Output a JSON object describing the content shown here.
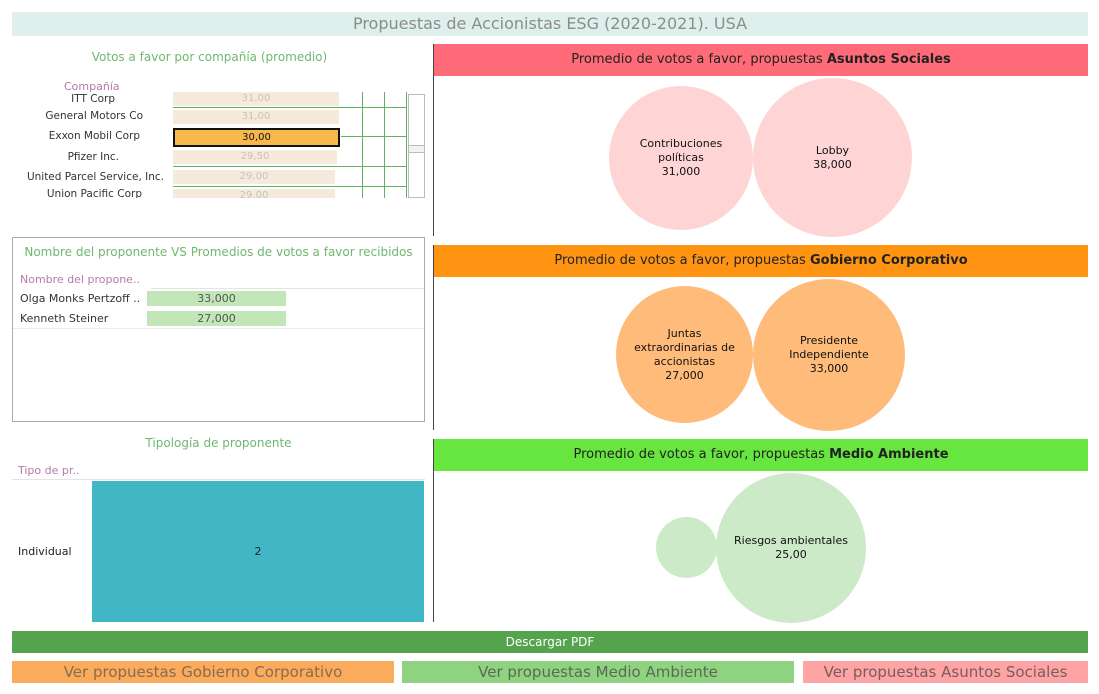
{
  "header": {
    "title": "Propuestas de Accionistas ESG (2020-2021). USA"
  },
  "company_panel": {
    "title": "Votos a favor por compañía (promedio)",
    "field_label": "Compañía",
    "rows": [
      {
        "name": "ITT Corp",
        "value": "31,00"
      },
      {
        "name": "General Motors Co",
        "value": "31,00"
      },
      {
        "name": "Exxon Mobil Corp",
        "value": "30,00"
      },
      {
        "name": "Pfizer Inc.",
        "value": "29,50"
      },
      {
        "name": "United Parcel Service, Inc.",
        "value": "29,00"
      },
      {
        "name": "Union Pacific Corp",
        "value": "29,00"
      }
    ]
  },
  "proponent_panel": {
    "title": "Nombre del proponente VS Promedios de votos a favor recibidos",
    "field_label": "Nombre del propone..",
    "rows": [
      {
        "name": "Olga Monks Pertzoff ..",
        "value": "33,000"
      },
      {
        "name": "Kenneth Steiner",
        "value": "27,000"
      }
    ]
  },
  "typology_panel": {
    "title": "Tipología de proponente",
    "field_label": "Tipo de pr..",
    "rows": [
      {
        "name": "Individual",
        "value": "2"
      }
    ]
  },
  "sections": {
    "social": {
      "header_prefix": "Promedio de votos a favor, propuestas ",
      "header_bold": "Asuntos Sociales",
      "color": "#ff6b78",
      "bubble_color": "#ffd4d4",
      "bubbles": [
        {
          "label": "Contribuciones políticas",
          "value": "31,000"
        },
        {
          "label": "Lobby",
          "value": "38,000"
        }
      ]
    },
    "governance": {
      "header_prefix": "Promedio de votos a favor, propuestas ",
      "header_bold": "Gobierno Corporativo",
      "color": "#ff9412",
      "bubble_color": "#ffbb7a",
      "bubbles": [
        {
          "label": "Juntas extraordinarias de accionistas",
          "value": "27,000"
        },
        {
          "label": "Presidente Independiente",
          "value": "33,000"
        }
      ]
    },
    "environment": {
      "header_prefix": "Promedio de votos a favor, propuestas ",
      "header_bold": "Medio Ambiente",
      "color": "#66e63e",
      "bubble_color": "#cdeac8",
      "bubbles": [
        {
          "label": "Riesgos ambientales",
          "value": "25,00"
        }
      ]
    }
  },
  "buttons": {
    "download": "Descargar PDF",
    "governance": "Ver propuestas Gobierno Corporativo",
    "environment": "Ver propuestas Medio Ambiente",
    "social": "Ver propuestas Asuntos Sociales"
  },
  "colors": {
    "typology_bar": "#41b6c4",
    "download_bg": "#56a34d",
    "btn_governance": "#fbab5c",
    "btn_environment": "#8fd27f",
    "btn_social": "#ffa4a4"
  }
}
